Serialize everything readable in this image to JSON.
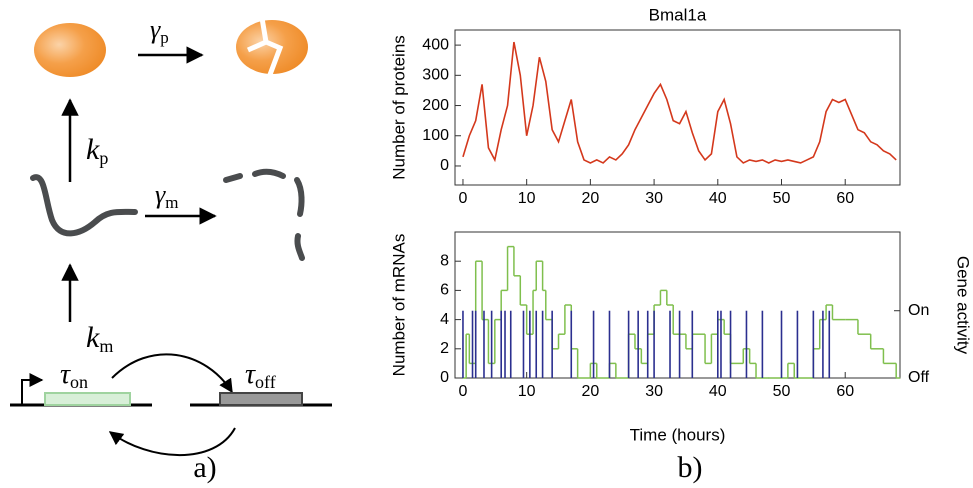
{
  "diagram": {
    "gamma_p": {
      "symbol": "γ",
      "sub": "p"
    },
    "k_p": {
      "symbol": "k",
      "sub": "p"
    },
    "gamma_m": {
      "symbol": "γ",
      "sub": "m"
    },
    "k_m": {
      "symbol": "k",
      "sub": "m"
    },
    "tau_on": {
      "symbol": "τ",
      "sub": "on"
    },
    "tau_off": {
      "symbol": "τ",
      "sub": "off"
    }
  },
  "panel_labels": [
    "a)",
    "b)"
  ],
  "chart_data": [
    {
      "type": "line",
      "title": "Bmal1a",
      "ylabel": "Number of proteins",
      "x": [
        0,
        1,
        2,
        3,
        4,
        5,
        6,
        7,
        8,
        9,
        10,
        11,
        12,
        13,
        14,
        15,
        16,
        17,
        18,
        19,
        20,
        21,
        22,
        23,
        24,
        25,
        26,
        27,
        28,
        29,
        30,
        31,
        32,
        33,
        34,
        35,
        36,
        37,
        38,
        39,
        40,
        41,
        42,
        43,
        44,
        45,
        46,
        47,
        48,
        49,
        50,
        51,
        52,
        53,
        54,
        55,
        56,
        57,
        58,
        59,
        60,
        61,
        62,
        63,
        64,
        65,
        66,
        67,
        68
      ],
      "series": [
        {
          "color": "#d4381c",
          "values": [
            30,
            100,
            150,
            270,
            60,
            20,
            120,
            200,
            410,
            300,
            100,
            200,
            360,
            280,
            120,
            80,
            150,
            220,
            80,
            20,
            10,
            20,
            10,
            30,
            20,
            40,
            70,
            120,
            160,
            200,
            240,
            270,
            220,
            150,
            140,
            180,
            110,
            50,
            20,
            40,
            180,
            220,
            140,
            30,
            10,
            20,
            15,
            20,
            10,
            20,
            15,
            20,
            15,
            10,
            20,
            30,
            80,
            180,
            220,
            210,
            220,
            170,
            120,
            110,
            80,
            70,
            50,
            40,
            20
          ]
        }
      ],
      "xlim": [
        -1.25,
        68.6
      ],
      "ylim": [
        -63,
        450
      ],
      "xticks": [
        0,
        10,
        20,
        30,
        40,
        50,
        60
      ],
      "yticks": [
        0,
        100,
        200,
        300,
        400
      ]
    },
    {
      "type": "step",
      "xlabel": "Time (hours)",
      "ylabel": "Number of mRNAs",
      "y2label": "Gene activity",
      "series": [
        {
          "color": "#7fbf4d",
          "x": [
            0,
            0.5,
            1,
            2,
            3,
            4,
            5,
            6,
            7,
            8,
            9,
            10,
            11,
            11.5,
            12.5,
            13,
            14,
            15,
            16,
            17,
            18,
            20,
            21,
            23,
            24,
            26,
            27,
            28,
            29,
            30,
            31,
            32,
            33,
            35,
            36,
            38,
            39,
            40,
            41,
            42,
            44,
            45,
            46,
            48,
            51,
            52,
            55,
            56,
            57,
            58,
            60,
            62,
            64,
            66,
            68
          ],
          "values": [
            0,
            3,
            1,
            8,
            4,
            1,
            4,
            6,
            9,
            7,
            5,
            3,
            6,
            8,
            6,
            4,
            2,
            3,
            5,
            2,
            0,
            1,
            0,
            1,
            0,
            3,
            2,
            1,
            3,
            5,
            6,
            5,
            3,
            2,
            3,
            1,
            3,
            4,
            3,
            1,
            2,
            1,
            0,
            0,
            1,
            0,
            2,
            4,
            5,
            4,
            4,
            3,
            2,
            1,
            0
          ]
        },
        {
          "color": "#2b2f8f",
          "axis": "y2",
          "x": [
            0,
            1.5,
            2,
            3.3,
            4.5,
            6,
            6.6,
            7.5,
            9.5,
            10.5,
            11.5,
            12.5,
            14,
            17,
            20.5,
            23,
            26,
            27.5,
            29,
            30,
            32.5,
            34,
            36,
            40,
            40.5,
            42,
            44.5,
            47,
            50,
            52.5,
            55,
            56.5,
            57.5
          ],
          "values": [
            1,
            1,
            1,
            1,
            1,
            1,
            1,
            1,
            1,
            1,
            1,
            1,
            1,
            1,
            1,
            1,
            1,
            1,
            1,
            1,
            1,
            1,
            1,
            1,
            1,
            1,
            1,
            1,
            1,
            1,
            1,
            1,
            1
          ]
        }
      ],
      "xlim": [
        -1.25,
        68.6
      ],
      "ylim": [
        0,
        10
      ],
      "y2lim": [
        0,
        2.17
      ],
      "xticks": [
        0,
        10,
        20,
        30,
        40,
        50,
        60
      ],
      "yticks": [
        0,
        2,
        4,
        6,
        8
      ],
      "y2ticks": [
        {
          "value": 0,
          "label": "Off"
        },
        {
          "value": 1,
          "label": "On"
        }
      ]
    }
  ]
}
